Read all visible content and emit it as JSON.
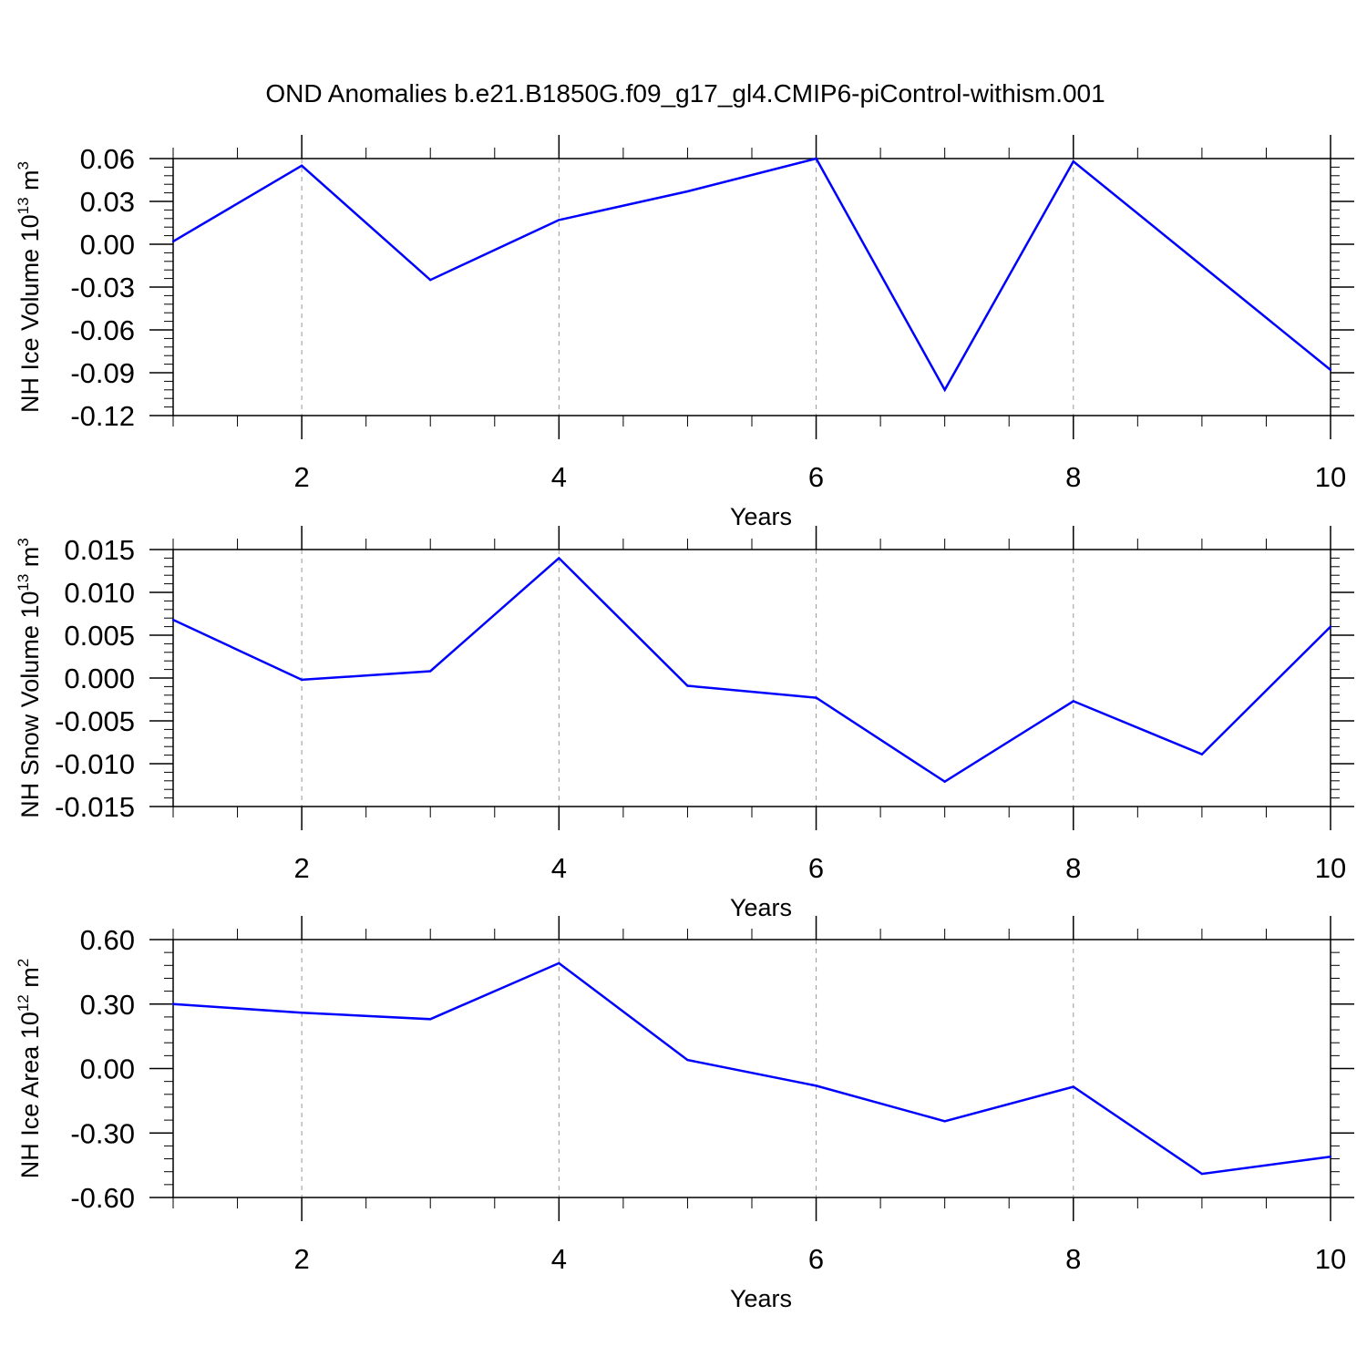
{
  "title": "OND Anomalies b.e21.B1850G.f09_g17_gl4.CMIP6-piControl-withism.001",
  "colors": {
    "line": "#0000ff",
    "grid": "#999999",
    "axis": "#000000"
  },
  "chart_data": [
    {
      "type": "line",
      "xlabel": "Years",
      "ylabel_main": "NH Ice Volume 10",
      "ylabel_exp": "13",
      "ylabel_unit": " m",
      "ylabel_unit_exp": "3",
      "xlim": [
        1,
        10
      ],
      "ylim": [
        -0.12,
        0.06
      ],
      "yticks": [
        -0.12,
        -0.09,
        -0.06,
        -0.03,
        0.0,
        0.03,
        0.06
      ],
      "ytick_labels": [
        "-0.12",
        "-0.09",
        "-0.06",
        "-0.03",
        "0.00",
        "0.03",
        "0.06"
      ],
      "xticks": [
        2,
        4,
        6,
        8,
        10
      ],
      "xtick_labels": [
        "2",
        "4",
        "6",
        "8",
        "10"
      ],
      "grid": "vertical dashed at major x ticks",
      "x": [
        1,
        2,
        3,
        4,
        5,
        6,
        7,
        8,
        9,
        10
      ],
      "values": [
        0.002,
        0.055,
        -0.025,
        0.017,
        0.037,
        0.06,
        -0.102,
        0.058,
        -0.015,
        -0.088
      ]
    },
    {
      "type": "line",
      "xlabel": "Years",
      "ylabel_main": "NH Snow Volume 10",
      "ylabel_exp": "13",
      "ylabel_unit": " m",
      "ylabel_unit_exp": "3",
      "xlim": [
        1,
        10
      ],
      "ylim": [
        -0.015,
        0.015
      ],
      "yticks": [
        -0.015,
        -0.01,
        -0.005,
        0.0,
        0.005,
        0.01,
        0.015
      ],
      "ytick_labels": [
        "-0.015",
        "-0.010",
        "-0.005",
        "0.000",
        "0.005",
        "0.010",
        "0.015"
      ],
      "xticks": [
        2,
        4,
        6,
        8,
        10
      ],
      "xtick_labels": [
        "2",
        "4",
        "6",
        "8",
        "10"
      ],
      "grid": "vertical dashed at major x ticks",
      "x": [
        1,
        2,
        3,
        4,
        5,
        6,
        7,
        8,
        9,
        10
      ],
      "values": [
        0.0068,
        -0.0002,
        0.0008,
        0.014,
        -0.0009,
        -0.0023,
        -0.0121,
        -0.0027,
        -0.0089,
        0.006
      ]
    },
    {
      "type": "line",
      "xlabel": "Years",
      "ylabel_main": "NH Ice Area 10",
      "ylabel_exp": "12",
      "ylabel_unit": " m",
      "ylabel_unit_exp": "2",
      "xlim": [
        1,
        10
      ],
      "ylim": [
        -0.6,
        0.6
      ],
      "yticks": [
        -0.6,
        -0.3,
        0.0,
        0.3,
        0.6
      ],
      "ytick_labels": [
        "-0.60",
        "-0.30",
        "0.00",
        "0.30",
        "0.60"
      ],
      "xticks": [
        2,
        4,
        6,
        8,
        10
      ],
      "xtick_labels": [
        "2",
        "4",
        "6",
        "8",
        "10"
      ],
      "grid": "vertical dashed at major x ticks",
      "x": [
        1,
        2,
        3,
        4,
        5,
        6,
        7,
        8,
        9,
        10
      ],
      "values": [
        0.3,
        0.26,
        0.23,
        0.49,
        0.04,
        -0.08,
        -0.245,
        -0.085,
        -0.49,
        -0.41
      ]
    }
  ]
}
